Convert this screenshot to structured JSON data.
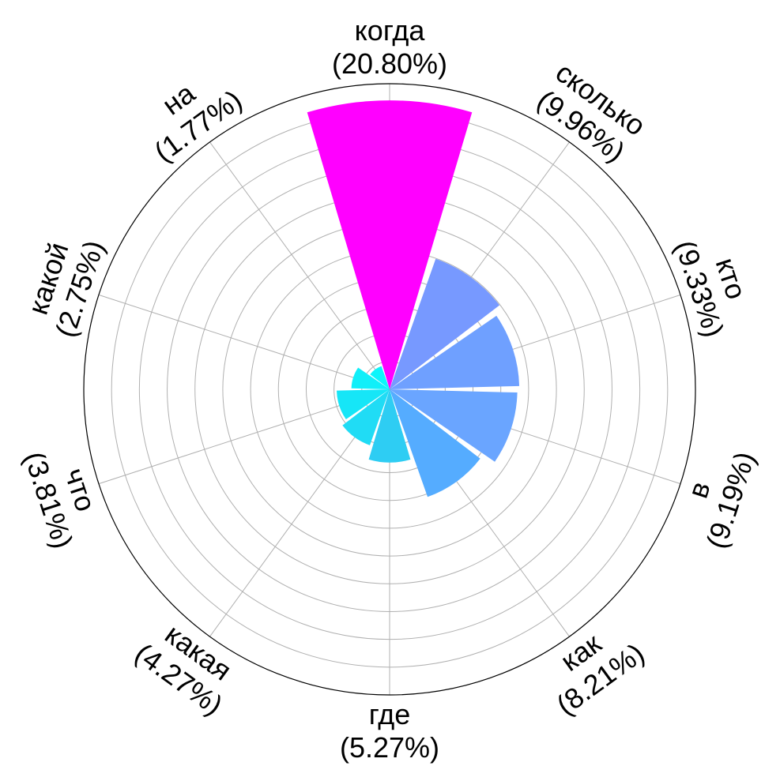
{
  "chart_data": {
    "type": "polar-bar",
    "categories": [
      "когда",
      "сколько",
      "кто",
      "в",
      "как",
      "где",
      "какая",
      "что",
      "какой",
      "на"
    ],
    "values": [
      20.8,
      9.96,
      9.33,
      9.19,
      8.21,
      5.27,
      4.27,
      3.81,
      2.75,
      1.77
    ],
    "labels": [
      "(20.80%)",
      "(9.96%)",
      "(9.33%)",
      "(9.19%)",
      "(8.21%)",
      "(5.27%)",
      "(4.27%)",
      "(3.81%)",
      "(2.75%)",
      "(1.77%)"
    ],
    "colors": [
      "#ff00ff",
      "#7799ff",
      "#6fa0ff",
      "#6aa5ff",
      "#55acff",
      "#2ecdf3",
      "#20dcf5",
      "#16e6f7",
      "#10eff9",
      "#0df5fb"
    ],
    "title": "",
    "rlim": [
      0,
      22
    ],
    "grid": true,
    "units": "%"
  }
}
